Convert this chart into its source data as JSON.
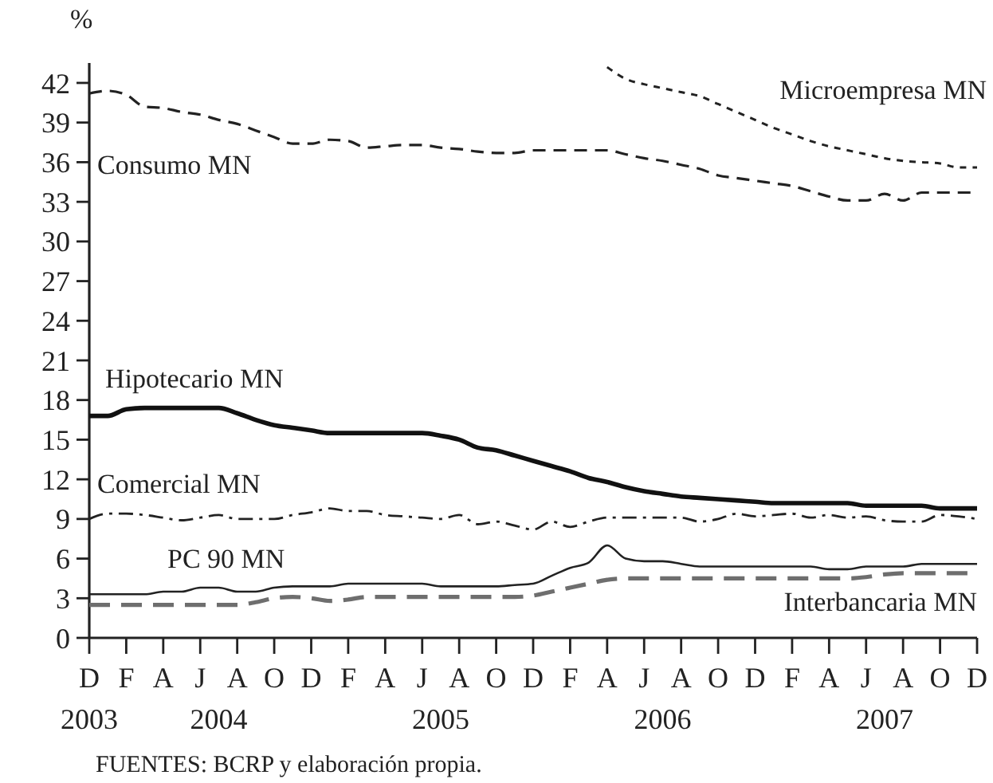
{
  "chart_data": {
    "type": "line",
    "ylabel": "%",
    "categories": [
      "D\n2003",
      null,
      "F",
      null,
      "A",
      null,
      "J",
      "\n2004",
      "A",
      null,
      "O",
      null,
      "D",
      null,
      "F",
      null,
      "A",
      null,
      "J",
      "\n2005",
      "A",
      null,
      "O",
      null,
      "D",
      null,
      "F",
      null,
      "A",
      null,
      "J",
      "\n2006",
      "A",
      null,
      "O",
      null,
      "D",
      null,
      "F",
      null,
      "A",
      null,
      "J",
      "\n2007",
      "A",
      null,
      "O",
      null,
      "D"
    ],
    "ylim": [
      0,
      43.5
    ],
    "yticks": [
      0,
      3,
      6,
      9,
      12,
      15,
      18,
      21,
      24,
      27,
      30,
      33,
      36,
      39,
      42
    ],
    "series": [
      {
        "name": "Microempresa MN",
        "color": "#222222",
        "line_style": "dotted",
        "values": [
          null,
          null,
          null,
          null,
          null,
          null,
          null,
          null,
          null,
          null,
          null,
          null,
          null,
          null,
          null,
          null,
          null,
          null,
          null,
          null,
          null,
          null,
          null,
          null,
          null,
          null,
          null,
          null,
          43.2,
          42.3,
          41.9,
          41.6,
          41.3,
          41.0,
          40.4,
          39.8,
          39.2,
          38.6,
          38.1,
          37.6,
          37.2,
          36.9,
          36.6,
          36.3,
          36.1,
          36.0,
          35.9,
          35.6,
          35.6
        ]
      },
      {
        "name": "Consumo MN",
        "color": "#222222",
        "line_style": "dashed",
        "values": [
          41.2,
          41.4,
          41.1,
          40.2,
          40.1,
          39.8,
          39.6,
          39.2,
          38.9,
          38.4,
          37.9,
          37.4,
          37.4,
          37.7,
          37.6,
          37.1,
          37.2,
          37.3,
          37.3,
          37.1,
          37.0,
          36.8,
          36.7,
          36.7,
          36.9,
          36.9,
          36.9,
          36.9,
          36.9,
          36.6,
          36.3,
          36.1,
          35.8,
          35.5,
          35.0,
          34.8,
          34.6,
          34.4,
          34.2,
          33.8,
          33.4,
          33.1,
          33.1,
          33.6,
          33.1,
          33.7,
          33.7,
          33.7,
          33.7
        ]
      },
      {
        "name": "Hipotecario MN",
        "color": "#111111",
        "line_style": "solid",
        "values": [
          16.8,
          16.8,
          17.3,
          17.4,
          17.4,
          17.4,
          17.4,
          17.4,
          17.0,
          16.5,
          16.1,
          15.9,
          15.7,
          15.5,
          15.5,
          15.5,
          15.5,
          15.5,
          15.5,
          15.3,
          15.0,
          14.4,
          14.2,
          13.8,
          13.4,
          13.0,
          12.6,
          12.1,
          11.8,
          11.4,
          11.1,
          10.9,
          10.7,
          10.6,
          10.5,
          10.4,
          10.3,
          10.2,
          10.2,
          10.2,
          10.2,
          10.2,
          10.0,
          10.0,
          10.0,
          10.0,
          9.8,
          9.8,
          9.8
        ]
      },
      {
        "name": "Comercial MN",
        "color": "#222222",
        "line_style": "dashdot",
        "values": [
          9.0,
          9.4,
          9.4,
          9.3,
          9.1,
          8.9,
          9.1,
          9.3,
          9.0,
          9.0,
          9.0,
          9.3,
          9.5,
          9.8,
          9.6,
          9.6,
          9.3,
          9.2,
          9.1,
          9.0,
          9.3,
          8.6,
          8.8,
          8.5,
          8.2,
          8.8,
          8.4,
          8.8,
          9.1,
          9.1,
          9.1,
          9.1,
          9.1,
          8.8,
          9.0,
          9.4,
          9.2,
          9.3,
          9.4,
          9.1,
          9.3,
          9.1,
          9.2,
          8.9,
          8.8,
          8.8,
          9.3,
          9.2,
          9.0
        ]
      },
      {
        "name": "PC 90 MN",
        "color": "#222222",
        "line_style": "solid",
        "values": [
          3.3,
          3.3,
          3.3,
          3.3,
          3.5,
          3.5,
          3.8,
          3.8,
          3.5,
          3.5,
          3.8,
          3.9,
          3.9,
          3.9,
          4.1,
          4.1,
          4.1,
          4.1,
          4.1,
          3.9,
          3.9,
          3.9,
          3.9,
          4.0,
          4.1,
          4.7,
          5.3,
          5.7,
          7.0,
          6.0,
          5.8,
          5.8,
          5.6,
          5.4,
          5.4,
          5.4,
          5.4,
          5.4,
          5.4,
          5.4,
          5.2,
          5.2,
          5.4,
          5.4,
          5.4,
          5.6,
          5.6,
          5.6,
          5.6
        ]
      },
      {
        "name": "Interbancaria MN",
        "color": "#6e6e6e",
        "line_style": "dashed",
        "values": [
          2.5,
          2.5,
          2.5,
          2.5,
          2.5,
          2.5,
          2.5,
          2.5,
          2.5,
          2.7,
          3.0,
          3.1,
          3.0,
          2.8,
          2.9,
          3.1,
          3.1,
          3.1,
          3.1,
          3.1,
          3.1,
          3.1,
          3.1,
          3.1,
          3.2,
          3.5,
          3.8,
          4.1,
          4.4,
          4.5,
          4.5,
          4.5,
          4.5,
          4.5,
          4.5,
          4.5,
          4.5,
          4.5,
          4.5,
          4.5,
          4.5,
          4.5,
          4.6,
          4.8,
          4.9,
          4.9,
          4.9,
          4.9,
          4.9
        ]
      }
    ],
    "annotations": [
      "FUENTES: BCRP y elaboración propia."
    ]
  }
}
